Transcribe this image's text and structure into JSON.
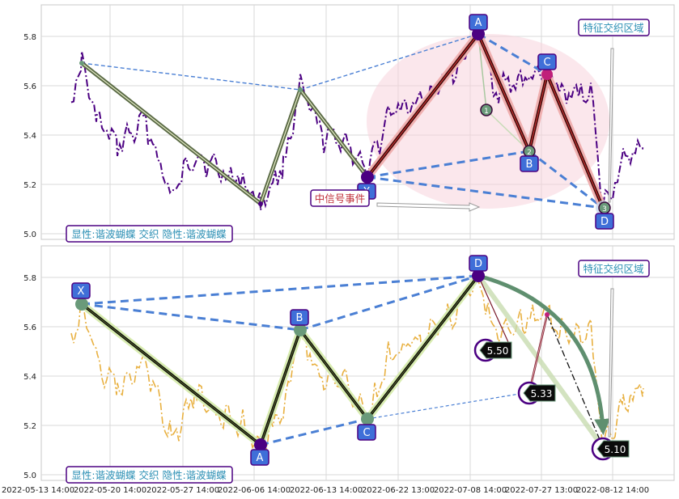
{
  "chart_data": {
    "type": "line",
    "x_tick_labels": [
      "2022-05-13 14:00",
      "2022-05-20 14:00",
      "2022-05-27 14:00",
      "2022-06-06 14:00",
      "2022-06-13 14:00",
      "2022-06-22 13:00",
      "2022-07-08 14:00",
      "2022-07-27 13:00",
      "2022-08-12 14:00"
    ],
    "colors": {
      "price_top": "#4b0082",
      "price_bottom": "#e8b040",
      "dashed_blue": "#4a7fd4",
      "box_fill": "#3f6fd8",
      "box_border": "#4b0082",
      "ellipse": "#f7d4dc"
    },
    "panels": [
      {
        "ylim": [
          4.98,
          5.93
        ],
        "y_ticks": [
          "5.0",
          "5.2",
          "5.4",
          "5.6",
          "5.8"
        ],
        "pattern_points": [
          {
            "label": "X",
            "x": 39.5,
            "y": 5.22
          },
          {
            "label": "A",
            "x": 57.0,
            "y": 5.8
          },
          {
            "label": "B",
            "x": 63.5,
            "y": 5.33
          },
          {
            "label": "C",
            "x": 65.5,
            "y": 5.64
          },
          {
            "label": "D",
            "x": 72.0,
            "y": 5.1
          }
        ],
        "circle_markers": [
          "1",
          "2",
          "3"
        ],
        "annotations": [
          "特征交织区域",
          "中信号事件"
        ],
        "legend": "显性:谐波蝴蝶 交织 隐性:谐波蝴蝶"
      },
      {
        "ylim": [
          4.98,
          5.93
        ],
        "y_ticks": [
          "5.0",
          "5.2",
          "5.4",
          "5.6",
          "5.8"
        ],
        "pattern_points": [
          {
            "label": "X",
            "x": 1.0,
            "y": 5.69
          },
          {
            "label": "A",
            "x": 23.0,
            "y": 5.12
          },
          {
            "label": "B",
            "x": 28.5,
            "y": 5.58
          },
          {
            "label": "C",
            "x": 39.5,
            "y": 5.22
          },
          {
            "label": "D",
            "x": 57.0,
            "y": 5.8
          }
        ],
        "value_labels": [
          "5.50",
          "5.33",
          "5.10"
        ],
        "annotations": [
          "特征交织区域"
        ],
        "legend": "显性:谐波蝴蝶 交织 隐性:谐波蝴蝶"
      }
    ]
  }
}
